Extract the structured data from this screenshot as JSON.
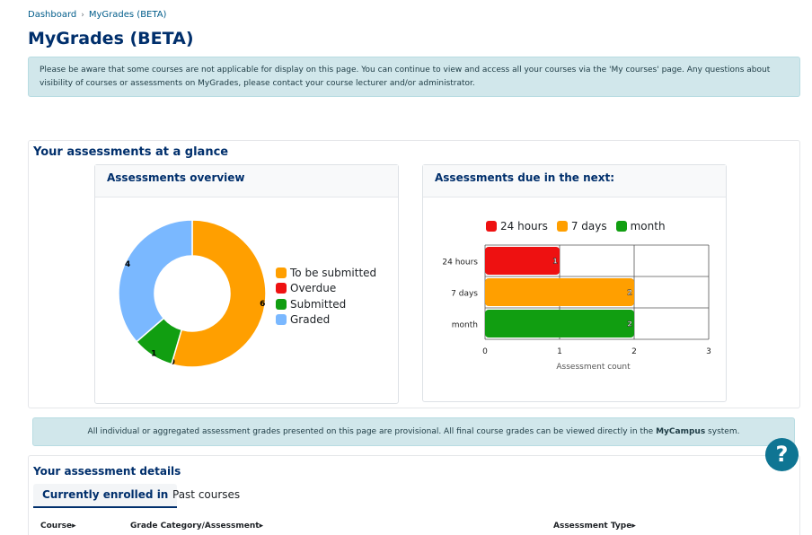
{
  "breadcrumb": {
    "home": "Dashboard",
    "separator": "›",
    "current": "MyGrades (BETA)"
  },
  "page_title": "MyGrades (BETA)",
  "notice": "Please be aware that some courses are not applicable for display on this page. You can continue to view and access all your courses via the 'My courses' page. Any questions about visibility of courses or assessments on MyGrades, please contact your course lecturer and/or administrator.",
  "glance": {
    "title": "Your assessments at a glance",
    "overview_title": "Assessments overview",
    "due_title": "Assessments due in the next:"
  },
  "chart_data": [
    {
      "type": "pie",
      "categories": [
        "To be submitted",
        "Overdue",
        "Submitted",
        "Graded"
      ],
      "values": [
        6,
        0,
        1,
        4
      ],
      "colors": [
        "#ff9f00",
        "#ee1111",
        "#119e11",
        "#7ab8ff"
      ]
    },
    {
      "type": "bar",
      "orientation": "horizontal",
      "categories": [
        "24 hours",
        "7 days",
        "month"
      ],
      "values": [
        1,
        2,
        2
      ],
      "colors": [
        "#ee1111",
        "#ff9f00",
        "#119e11"
      ],
      "series_labels": [
        "24 hours",
        "7 days",
        "month"
      ],
      "xlabel": "Assessment count",
      "xticks": [
        "0",
        "1",
        "2",
        "3"
      ],
      "xlim": [
        0,
        3
      ]
    }
  ],
  "provisional": {
    "text_before": "All individual or aggregated assessment grades presented on this page are provisional. All final course grades can be viewed directly in the ",
    "bold": "MyCampus",
    "text_after": " system."
  },
  "details": {
    "title": "Your assessment details",
    "tabs": [
      "Currently enrolled in",
      "Past courses"
    ],
    "columns": [
      "Course",
      "Grade Category/Assessment",
      "Assessment Type"
    ],
    "sort_glyph": "▸"
  },
  "help": {
    "label": "?"
  }
}
